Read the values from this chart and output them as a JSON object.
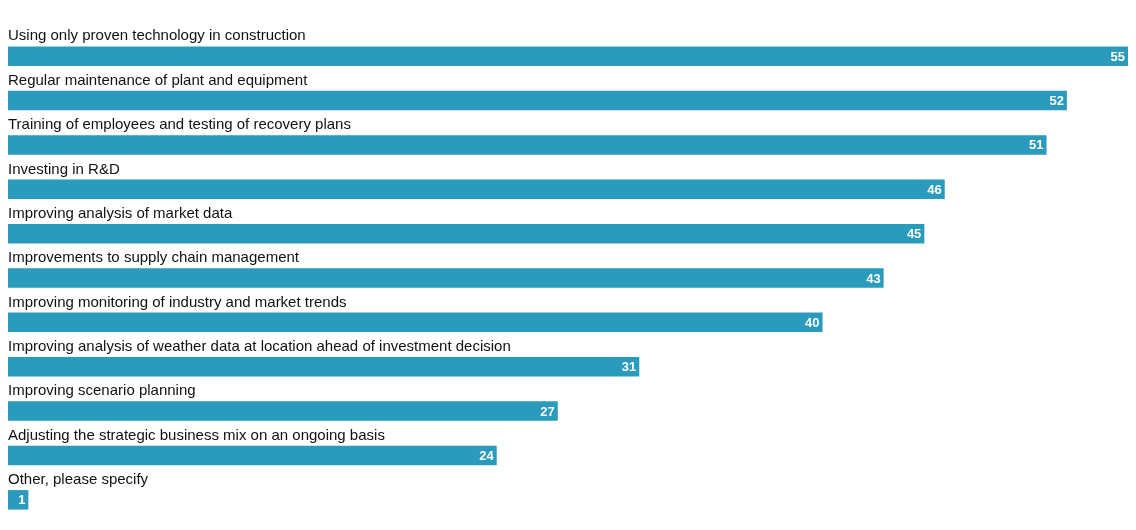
{
  "chart_data": {
    "type": "bar",
    "orientation": "horizontal",
    "categories": [
      "Using only proven technology in construction",
      "Regular maintenance of plant and equipment",
      "Training of employees and testing of recovery plans",
      "Investing in R&D",
      "Improving analysis of market data",
      "Improvements to supply chain management",
      "Improving monitoring of industry and market trends",
      "Improving analysis of weather data at location ahead of investment decision",
      "Improving scenario planning",
      "Adjusting the strategic business mix on an ongoing basis",
      "Other, please specify"
    ],
    "values": [
      55,
      52,
      51,
      46,
      45,
      43,
      40,
      31,
      27,
      24,
      1
    ],
    "color": "#2a9bbd",
    "data_labels": true,
    "legend": false
  }
}
